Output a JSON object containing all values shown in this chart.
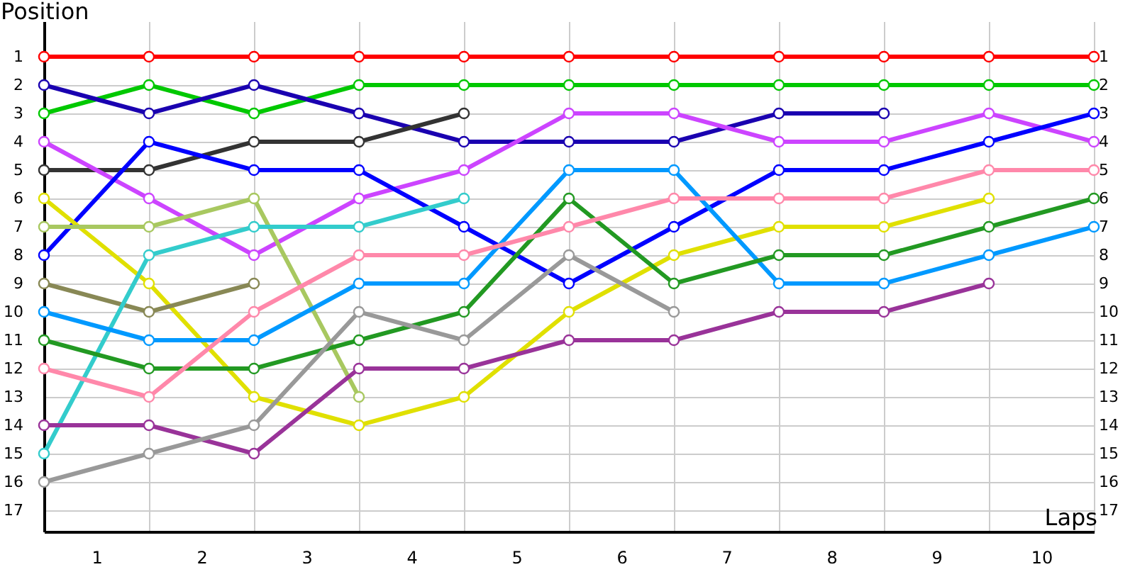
{
  "chart_data": {
    "type": "line",
    "xlabel": "Laps",
    "ylabel": "Position",
    "x": [
      0,
      1,
      2,
      3,
      4,
      5,
      6,
      7,
      8,
      9,
      10
    ],
    "xlim": [
      0,
      10
    ],
    "xticks": [
      {
        "value": 0,
        "label": null
      },
      {
        "value": 0.5,
        "label": "1"
      },
      {
        "value": 1,
        "label": null
      },
      {
        "value": 1.5,
        "label": "2"
      },
      {
        "value": 2,
        "label": null
      },
      {
        "value": 2.5,
        "label": "3"
      },
      {
        "value": 3,
        "label": null
      },
      {
        "value": 3.5,
        "label": "4"
      },
      {
        "value": 4,
        "label": null
      },
      {
        "value": 4.5,
        "label": "5"
      },
      {
        "value": 5,
        "label": null
      },
      {
        "value": 5.5,
        "label": "6"
      },
      {
        "value": 6,
        "label": null
      },
      {
        "value": 6.5,
        "label": "7"
      },
      {
        "value": 7,
        "label": null
      },
      {
        "value": 7.5,
        "label": "8"
      },
      {
        "value": 8,
        "label": null
      },
      {
        "value": 8.5,
        "label": "9"
      },
      {
        "value": 9,
        "label": null
      },
      {
        "value": 9.5,
        "label": "10"
      },
      {
        "value": 10,
        "label": null
      }
    ],
    "ylim": [
      17.75,
      -0.25
    ],
    "yticks": [
      1,
      2,
      3,
      4,
      5,
      6,
      7,
      8,
      9,
      10,
      11,
      12,
      13,
      14,
      15,
      16,
      17
    ],
    "y2lim": [
      17.75,
      -0.25
    ],
    "y2ticks": [
      1,
      2,
      3,
      4,
      5,
      6,
      7,
      8,
      9,
      10,
      11,
      12,
      13,
      14,
      15,
      16,
      17
    ],
    "grid": true,
    "marker": "circle",
    "line_style": "solid",
    "series": [
      {
        "color": "#ff0000",
        "values": [
          1,
          1,
          1,
          1,
          1,
          1,
          1,
          1,
          1,
          1,
          1
        ]
      },
      {
        "color": "#00c800",
        "values": [
          3,
          2,
          3,
          2,
          2,
          2,
          2,
          2,
          2,
          2,
          2
        ]
      },
      {
        "color": "#1a00b0",
        "values": [
          2,
          3,
          2,
          3,
          4,
          4,
          4,
          3,
          3,
          null,
          null
        ]
      },
      {
        "color": "#333333",
        "values": [
          5,
          5,
          4,
          4,
          3,
          null,
          null,
          null,
          null,
          null,
          null
        ]
      },
      {
        "color": "#cc44ff",
        "values": [
          4,
          6,
          8,
          6,
          5,
          3,
          3,
          4,
          4,
          3,
          4
        ]
      },
      {
        "color": "#0000ff",
        "values": [
          8,
          4,
          5,
          5,
          7,
          9,
          7,
          5,
          5,
          4,
          3
        ]
      },
      {
        "color": "#e0e000",
        "values": [
          6,
          9,
          13,
          14,
          13,
          10,
          8,
          7,
          7,
          6,
          null
        ]
      },
      {
        "color": "#a8c860",
        "values": [
          7,
          7,
          6,
          13,
          null,
          null,
          null,
          null,
          null,
          null,
          null
        ]
      },
      {
        "color": "#888855",
        "values": [
          9,
          10,
          9,
          null,
          null,
          null,
          null,
          null,
          null,
          null,
          null
        ]
      },
      {
        "color": "#33cccc",
        "values": [
          15,
          8,
          7,
          7,
          6,
          null,
          null,
          null,
          null,
          null,
          null
        ]
      },
      {
        "color": "#0099ff",
        "values": [
          10,
          11,
          11,
          9,
          9,
          5,
          5,
          9,
          9,
          8,
          7
        ]
      },
      {
        "color": "#229922",
        "values": [
          11,
          12,
          12,
          11,
          10,
          6,
          9,
          8,
          8,
          7,
          6
        ]
      },
      {
        "color": "#ff88aa",
        "values": [
          12,
          13,
          10,
          8,
          8,
          7,
          6,
          6,
          6,
          5,
          5
        ]
      },
      {
        "color": "#993399",
        "values": [
          14,
          14,
          15,
          12,
          12,
          11,
          11,
          10,
          10,
          9,
          null
        ]
      },
      {
        "color": "#999999",
        "values": [
          16,
          15,
          14,
          10,
          11,
          8,
          10,
          null,
          null,
          null,
          null
        ]
      }
    ]
  }
}
